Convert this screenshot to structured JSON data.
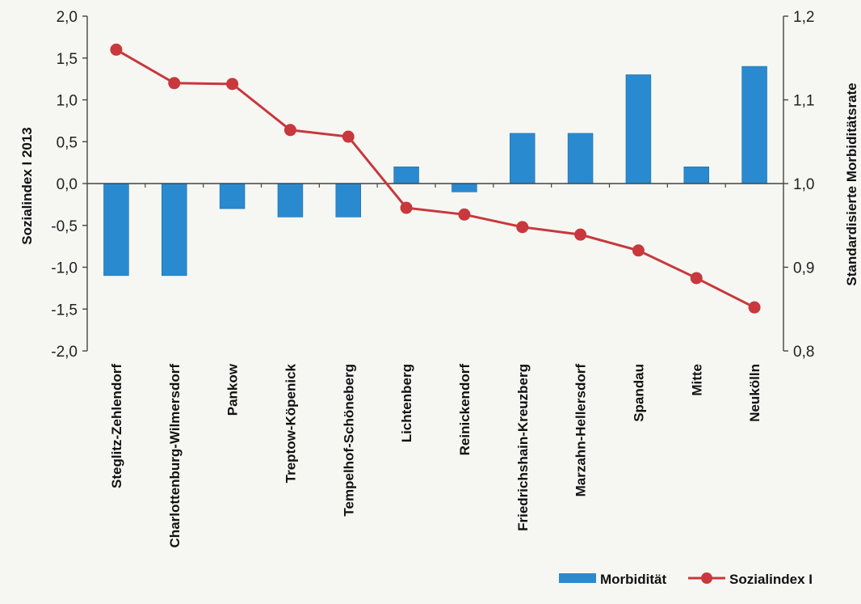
{
  "chart_data": {
    "type": "bar",
    "categories": [
      "Steglitz-Zehlendorf",
      "Charlottenburg-Wilmersdorf",
      "Pankow",
      "Treptow-Köpenick",
      "Tempelhof-Schöneberg",
      "Lichtenberg",
      "Reinickendorf",
      "Friedrichshain-Kreuzberg",
      "Marzahn-Hellersdorf",
      "Spandau",
      "Mitte",
      "Neukölln"
    ],
    "series": [
      {
        "name": "Morbidität",
        "type": "bar",
        "axis": "left",
        "color": "#2a8ad0",
        "values": [
          -1.1,
          -1.1,
          -0.3,
          -0.4,
          -0.4,
          0.2,
          -0.1,
          0.6,
          0.6,
          1.3,
          0.2,
          1.4
        ]
      },
      {
        "name": "Sozialindex I",
        "type": "line",
        "axis": "right",
        "color": "#c8383c",
        "values": [
          1.16,
          1.12,
          1.119,
          1.064,
          1.056,
          0.971,
          0.963,
          0.948,
          0.939,
          0.92,
          0.887,
          0.852
        ]
      }
    ],
    "ylabel": "Sozialindex I 2013",
    "y2label": "Standardisierte Morbiditätsrate",
    "ylim": [
      -2.0,
      2.0
    ],
    "y2lim": [
      0.8,
      1.2
    ],
    "yticks": [
      "2,0",
      "1,5",
      "1,0",
      "0,5",
      "0,0",
      "-0,5",
      "-1,0",
      "-1,5",
      "-2,0"
    ],
    "y2ticks": [
      "1,2",
      "1,1",
      "1,0",
      "0,9",
      "0,8"
    ],
    "grid": false,
    "legend": "bottom-right"
  }
}
